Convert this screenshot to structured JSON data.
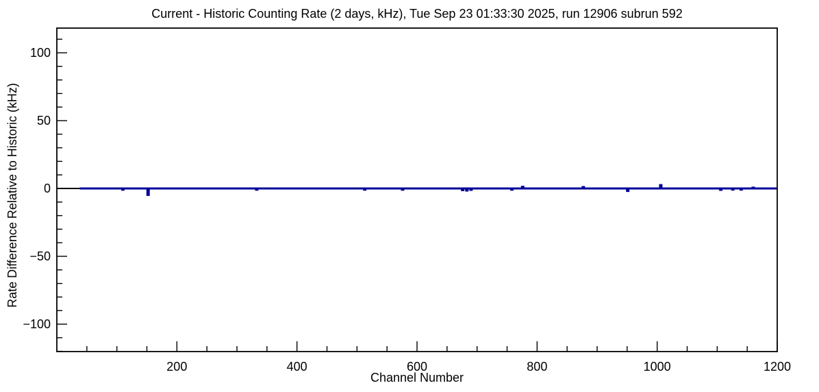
{
  "chart_data": {
    "type": "line",
    "title": "Current - Historic Counting Rate (2 days, kHz), Tue Sep 23 01:33:30 2025, run 12906 subrun 592",
    "xlabel": "Channel Number",
    "ylabel": "Rate Difference Relative to Historic (kHz)",
    "xlim": [
      0,
      1200
    ],
    "ylim": [
      -120.2,
      118.2
    ],
    "x_major_step": 200,
    "x_minor_step": 50,
    "y_major_step": 50,
    "y_minor_step": 10,
    "x_tick_labels": [
      200,
      400,
      600,
      800,
      1000,
      1200
    ],
    "y_tick_labels": [
      100,
      50,
      0,
      -50,
      -100
    ],
    "grid": false,
    "legend": null,
    "line_color": "#000099",
    "zero_line_color": "#000000",
    "baseline_value": 0,
    "data_start_channel": 38,
    "data_end_channel": 1200,
    "spikes": [
      {
        "channel": 110,
        "value": -0.9
      },
      {
        "channel": 152,
        "value": -4.7
      },
      {
        "channel": 333,
        "value": -0.9
      },
      {
        "channel": 513,
        "value": -0.9
      },
      {
        "channel": 576,
        "value": -0.9
      },
      {
        "channel": 676,
        "value": -1.2
      },
      {
        "channel": 683,
        "value": -1.5
      },
      {
        "channel": 690,
        "value": -1.0
      },
      {
        "channel": 758,
        "value": -0.9
      },
      {
        "channel": 776,
        "value": 1.2
      },
      {
        "channel": 877,
        "value": 1.0
      },
      {
        "channel": 951,
        "value": -1.8
      },
      {
        "channel": 1006,
        "value": 2.5
      },
      {
        "channel": 1106,
        "value": -1.0
      },
      {
        "channel": 1126,
        "value": -0.8
      },
      {
        "channel": 1140,
        "value": -0.8
      },
      {
        "channel": 1160,
        "value": 0.6
      }
    ]
  }
}
